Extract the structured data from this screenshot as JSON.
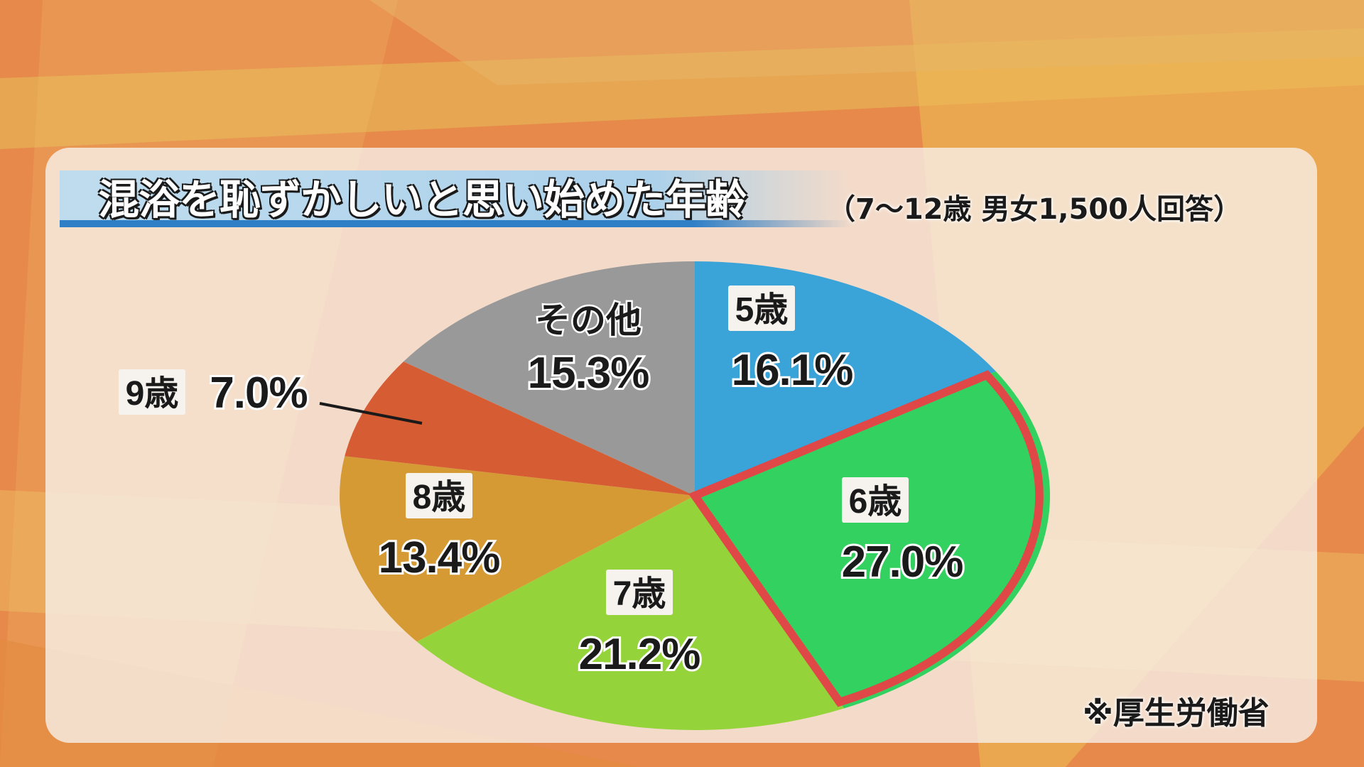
{
  "chart_title": "混浴を恥ずかしいと思い始めた年齢",
  "chart_subtitle": "（7～12歳 男女1,500人回答）",
  "source_note": "※厚生労働省",
  "colors": {
    "background": "#e6894a",
    "panel": "#f8f0e8",
    "title_bar": "#5aa9dd",
    "highlight_border": "#e04848"
  },
  "chart_data": {
    "type": "pie",
    "title": "混浴を恥ずかしいと思い始めた年齢",
    "subtitle": "（7～12歳 男女1,500人回答）",
    "start": "12 o'clock, clockwise",
    "highlighted": "6歳",
    "slices": [
      {
        "label": "5歳",
        "value": 16.1,
        "value_label": "16.1%",
        "color": "#3aa3d8"
      },
      {
        "label": "6歳",
        "value": 27.0,
        "value_label": "27.0%",
        "color": "#33d15f",
        "highlighted": true
      },
      {
        "label": "7歳",
        "value": 21.2,
        "value_label": "21.2%",
        "color": "#94d43a"
      },
      {
        "label": "8歳",
        "value": 13.4,
        "value_label": "13.4%",
        "color": "#d69a35"
      },
      {
        "label": "9歳",
        "value": 7.0,
        "value_label": "7.0%",
        "color": "#d65c33",
        "label_outside": true
      },
      {
        "label": "その他",
        "value": 15.3,
        "value_label": "15.3%",
        "color": "#999999",
        "label_style": "plain"
      }
    ]
  }
}
